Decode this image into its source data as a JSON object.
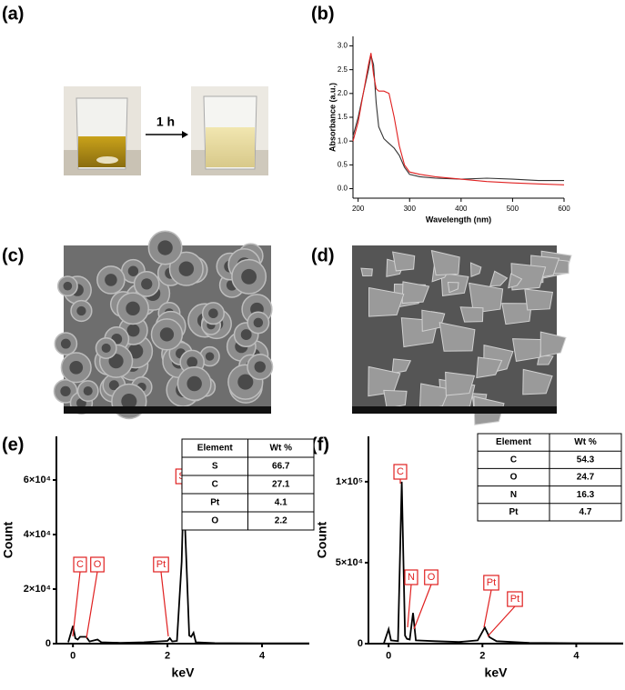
{
  "panel_labels": [
    "(a)",
    "(b)",
    "(c)",
    "(d)",
    "(e)",
    "(f)"
  ],
  "photo_a": {
    "arrow_label": "1 h"
  },
  "chart_data": [
    {
      "type": "line",
      "xlabel": "Wavelength (nm)",
      "ylabel": "Absorbance (a.u.)",
      "x": [
        190,
        200,
        210,
        220,
        225,
        230,
        235,
        240,
        250,
        260,
        270,
        280,
        290,
        300,
        320,
        350,
        400,
        450,
        500,
        550,
        600
      ],
      "series": [
        {
          "color": "#333333",
          "values": [
            1.1,
            1.5,
            2.0,
            2.5,
            2.8,
            2.6,
            1.8,
            1.3,
            1.05,
            0.95,
            0.85,
            0.7,
            0.45,
            0.3,
            0.25,
            0.22,
            0.2,
            0.22,
            0.2,
            0.17,
            0.17
          ]
        },
        {
          "color": "#e02020",
          "values": [
            1.0,
            1.4,
            2.0,
            2.6,
            2.85,
            2.4,
            2.1,
            2.05,
            2.05,
            2.0,
            1.5,
            0.9,
            0.5,
            0.35,
            0.3,
            0.25,
            0.2,
            0.15,
            0.12,
            0.1,
            0.08
          ]
        }
      ],
      "xlim": [
        190,
        600
      ],
      "ylim": [
        -0.2,
        3.2
      ],
      "xticks": [
        200,
        300,
        400,
        500,
        600
      ],
      "yticks": [
        {
          "value": 0,
          "label": "0.0"
        },
        0.5,
        {
          "value": 1,
          "label": "1.0"
        },
        1.5,
        {
          "value": 2,
          "label": "2.0"
        },
        2.5,
        {
          "value": 3,
          "label": "3.0"
        }
      ]
    },
    {
      "type": "line",
      "xlabel": "keV",
      "ylabel": "Count",
      "color": "#000000",
      "x": [
        -0.1,
        0,
        0.05,
        0.1,
        0.15,
        0.28,
        0.35,
        0.52,
        0.6,
        1.0,
        1.5,
        2.0,
        2.05,
        2.1,
        2.2,
        2.3,
        2.34,
        2.4,
        2.46,
        2.5,
        2.55,
        2.6,
        3,
        4,
        5
      ],
      "values": [
        500,
        6500,
        2000,
        1500,
        2500,
        2500,
        800,
        1500,
        500,
        300,
        500,
        1000,
        2000,
        800,
        1000,
        30000,
        57000,
        30000,
        3000,
        2500,
        4000,
        500,
        200,
        100,
        100
      ],
      "xlim": [
        -0.35,
        5
      ],
      "ylim": [
        0,
        76000
      ],
      "xticks": [
        0,
        2,
        4
      ],
      "yticks": [
        0,
        {
          "value": 20000,
          "label": "2×10⁴"
        },
        {
          "value": 40000,
          "label": "4×10⁴"
        },
        {
          "value": 60000,
          "label": "6×10⁴"
        }
      ],
      "annotation_color": "#e02020",
      "annotations": [
        "C",
        "O",
        "Pt",
        "S"
      ],
      "table": {
        "columns": [
          "Element",
          "Wt %"
        ],
        "rows": [
          [
            "S",
            66.7
          ],
          [
            "C",
            27.1
          ],
          [
            "Pt",
            4.1
          ],
          [
            "O",
            2.2
          ]
        ]
      }
    },
    {
      "type": "line",
      "xlabel": "keV",
      "ylabel": "Count",
      "color": "#000000",
      "x": [
        -0.1,
        0,
        0.05,
        0.2,
        0.28,
        0.35,
        0.39,
        0.45,
        0.52,
        0.58,
        1,
        1.5,
        1.9,
        2.05,
        2.15,
        2.3,
        3,
        4,
        5
      ],
      "values": [
        300,
        9000,
        2000,
        1500,
        100000,
        5000,
        3000,
        2500,
        19000,
        2000,
        1500,
        1000,
        2000,
        10000,
        4000,
        1500,
        500,
        300,
        200
      ],
      "xlim": [
        -0.43,
        5
      ],
      "ylim": [
        0,
        128000
      ],
      "xticks": [
        0,
        2,
        4
      ],
      "yticks": [
        0,
        {
          "value": 50000,
          "label": "5×10⁴"
        },
        {
          "value": 100000,
          "label": "1×10⁵"
        }
      ],
      "annotation_color": "#e02020",
      "annotations": [
        "C",
        "N",
        "O",
        "Pt",
        "Pt"
      ],
      "table": {
        "columns": [
          "Element",
          "Wt %"
        ],
        "rows": [
          [
            "C",
            54.3
          ],
          [
            "O",
            24.7
          ],
          [
            "N",
            16.3
          ],
          [
            "Pt",
            4.7
          ]
        ]
      }
    }
  ]
}
